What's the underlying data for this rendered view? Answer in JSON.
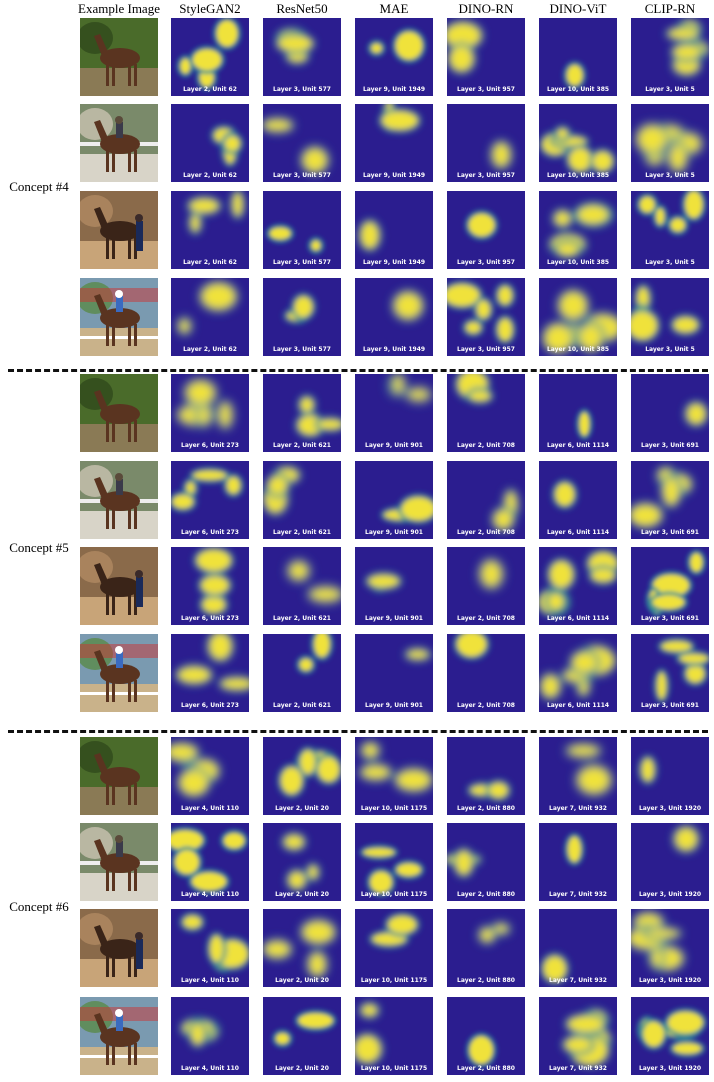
{
  "columns": [
    "Example Image",
    "StyleGAN2",
    "ResNet50",
    "MAE",
    "DINO-RN",
    "DINO-ViT",
    "CLIP-RN"
  ],
  "colors": {
    "background": "#2b1d8f",
    "low": "#3a2fa0",
    "mid": "#2c8a9a",
    "high": "#f0e23a",
    "divider": "#111111"
  },
  "example_images": [
    "horse-standing-under-trees",
    "rider-on-horse-by-fence",
    "person-leading-horse-on-dirt-track",
    "jockey-on-racehorse-at-track"
  ],
  "concepts": [
    {
      "label": "Concept #4",
      "rows": [
        [
          "Layer 2, Unit 62",
          "Layer 3, Unit 577",
          "Layer 9, Unit 1949",
          "Layer 3, Unit 957",
          "Layer 10, Unit 385",
          "Layer 3, Unit 5"
        ],
        [
          "Layer 2, Unit 62",
          "Layer 3, Unit 577",
          "Layer 9, Unit 1949",
          "Layer 3, Unit 957",
          "Layer 10, Unit 385",
          "Layer 3, Unit 5"
        ],
        [
          "Layer 2, Unit 62",
          "Layer 3, Unit 577",
          "Layer 9, Unit 1949",
          "Layer 3, Unit 957",
          "Layer 10, Unit 385",
          "Layer 3, Unit 5"
        ],
        [
          "Layer 2, Unit 62",
          "Layer 3, Unit 577",
          "Layer 9, Unit 1949",
          "Layer 3, Unit 957",
          "Layer 10, Unit 385",
          "Layer 3, Unit 5"
        ]
      ]
    },
    {
      "label": "Concept #5",
      "rows": [
        [
          "Layer 6, Unit 273",
          "Layer 2, Unit 621",
          "Layer 9, Unit 901",
          "Layer 2, Unit 708",
          "Layer 6, Unit 1114",
          "Layer 3, Unit 691"
        ],
        [
          "Layer 6, Unit 273",
          "Layer 2, Unit 621",
          "Layer 9, Unit 901",
          "Layer 2, Unit 708",
          "Layer 6, Unit 1114",
          "Layer 3, Unit 691"
        ],
        [
          "Layer 6, Unit 273",
          "Layer 2, Unit 621",
          "Layer 9, Unit 901",
          "Layer 2, Unit 708",
          "Layer 6, Unit 1114",
          "Layer 3, Unit 691"
        ],
        [
          "Layer 6, Unit 273",
          "Layer 2, Unit 621",
          "Layer 9, Unit 901",
          "Layer 2, Unit 708",
          "Layer 6, Unit 1114",
          "Layer 3, Unit 691"
        ]
      ]
    },
    {
      "label": "Concept #6",
      "rows": [
        [
          "Layer 4, Unit 110",
          "Layer 2, Unit 20",
          "Layer 10, Unit 1175",
          "Layer 2, Unit 880",
          "Layer 7, Unit 932",
          "Layer 3, Unit 1920"
        ],
        [
          "Layer 4, Unit 110",
          "Layer 2, Unit 20",
          "Layer 10, Unit 1175",
          "Layer 2, Unit 880",
          "Layer 7, Unit 932",
          "Layer 3, Unit 1920"
        ],
        [
          "Layer 4, Unit 110",
          "Layer 2, Unit 20",
          "Layer 10, Unit 1175",
          "Layer 2, Unit 880",
          "Layer 7, Unit 932",
          "Layer 3, Unit 1920"
        ],
        [
          "Layer 4, Unit 110",
          "Layer 2, Unit 20",
          "Layer 10, Unit 1175",
          "Layer 2, Unit 880",
          "Layer 7, Unit 932",
          "Layer 3, Unit 1920"
        ]
      ]
    }
  ]
}
